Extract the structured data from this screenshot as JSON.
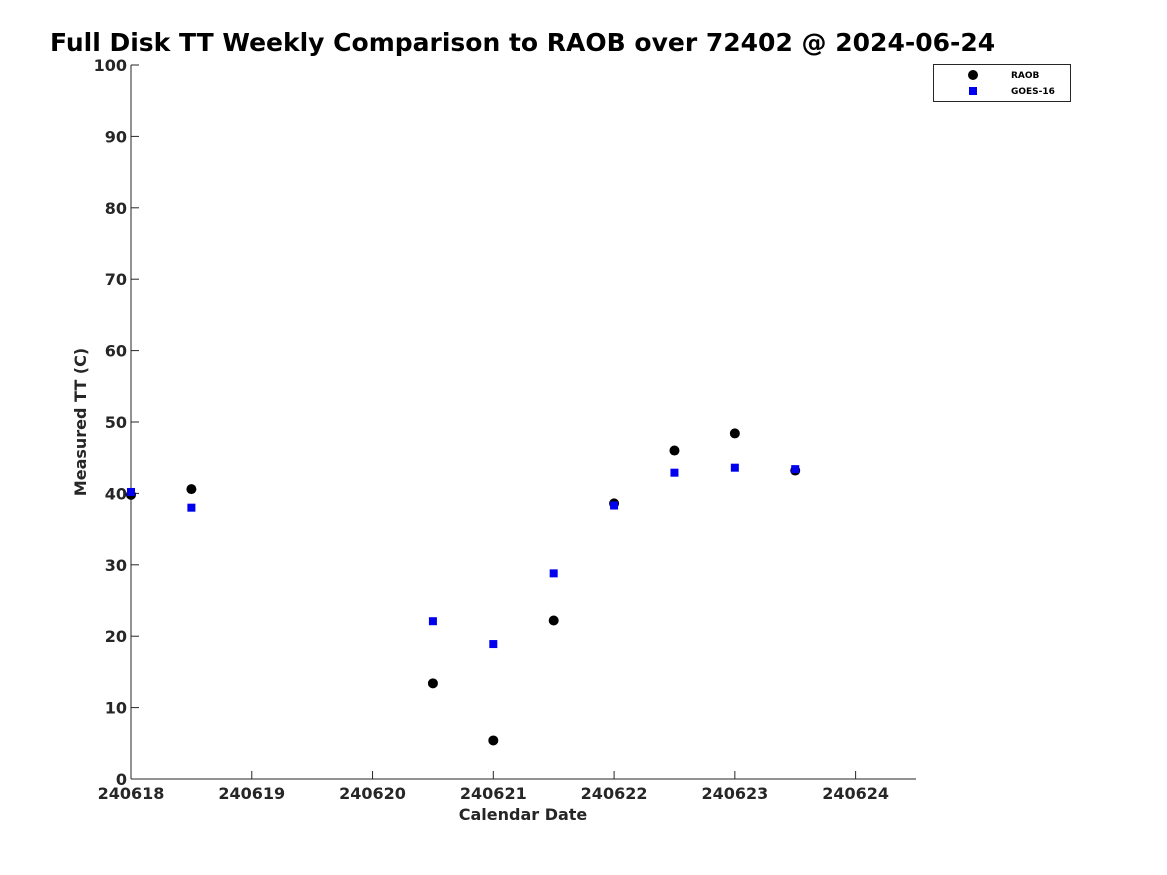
{
  "chart_data": {
    "type": "scatter",
    "title": "Full Disk TT Weekly Comparison to RAOB over 72402 @ 2024-06-24",
    "xlabel": "Calendar Date",
    "ylabel": "Measured TT (C)",
    "xlim": [
      "2024-06-18",
      "2024-06-24 12:00"
    ],
    "ylim": [
      0,
      100
    ],
    "x_ticks": [
      "2024-06-18",
      "2024-06-19",
      "2024-06-20",
      "2024-06-21",
      "2024-06-22",
      "2024-06-23",
      "2024-06-24"
    ],
    "x_tick_labels": [
      "240618",
      "240619",
      "240620",
      "240621",
      "240622",
      "240623",
      "240624"
    ],
    "y_ticks": [
      0,
      10,
      20,
      30,
      40,
      50,
      60,
      70,
      80,
      90,
      100
    ],
    "y_tick_labels": [
      "0",
      "10",
      "20",
      "30",
      "40",
      "50",
      "60",
      "70",
      "80",
      "90",
      "100"
    ],
    "grid": false,
    "legend_position": "top-right",
    "series": [
      {
        "name": "RAOB",
        "marker": "circle",
        "color": "#000000",
        "x": [
          "2024-06-18 00:00",
          "2024-06-18 12:00",
          "2024-06-20 12:00",
          "2024-06-21 00:00",
          "2024-06-21 12:00",
          "2024-06-22 00:00",
          "2024-06-22 12:00",
          "2024-06-23 00:00",
          "2024-06-23 12:00"
        ],
        "y": [
          39.8,
          40.6,
          13.4,
          5.4,
          22.2,
          38.6,
          46.0,
          48.4,
          43.2
        ]
      },
      {
        "name": "GOES-16",
        "marker": "square",
        "color": "#0000ee",
        "x": [
          "2024-06-18 00:00",
          "2024-06-18 12:00",
          "2024-06-20 12:00",
          "2024-06-21 00:00",
          "2024-06-21 12:00",
          "2024-06-22 00:00",
          "2024-06-22 12:00",
          "2024-06-23 00:00",
          "2024-06-23 12:00"
        ],
        "y": [
          40.2,
          38.0,
          22.1,
          18.9,
          28.8,
          38.3,
          42.9,
          43.6,
          43.4
        ]
      }
    ]
  }
}
